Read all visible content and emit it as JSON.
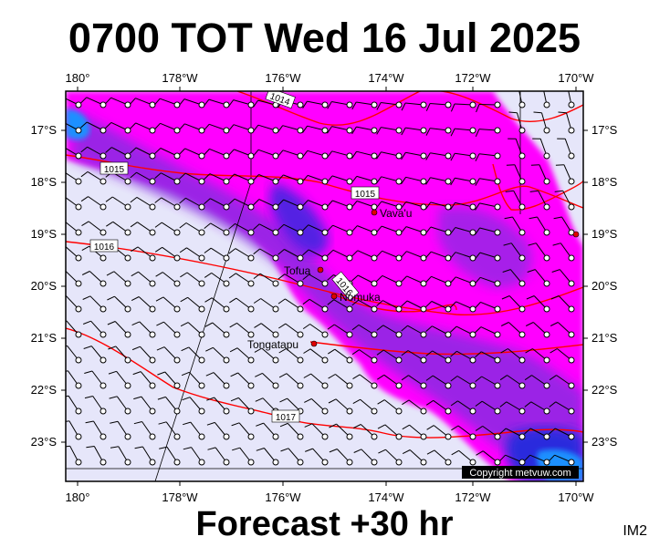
{
  "header": {
    "title": "0700 TOT Wed 16 Jul 2025"
  },
  "footer": {
    "forecast": "Forecast +30 hr",
    "code": "IM2"
  },
  "map": {
    "lon_ticks": [
      "180°",
      "178°W",
      "176°W",
      "174°W",
      "172°W",
      "170°W"
    ],
    "lat_ticks": [
      "17°S",
      "18°S",
      "19°S",
      "20°S",
      "21°S",
      "22°S",
      "23°S"
    ],
    "places": [
      {
        "name": "Vava'u",
        "lon": -173.9,
        "lat": -18.65
      },
      {
        "name": "Tofua",
        "lon": -175.05,
        "lat": -19.75
      },
      {
        "name": "Nomuka",
        "lon": -174.8,
        "lat": -20.25
      },
      {
        "name": "Tongatapu",
        "lon": -175.2,
        "lat": -21.15
      }
    ],
    "isobar_labels": [
      "1014",
      "1015",
      "1015",
      "1016",
      "1016",
      "1017"
    ],
    "copyright": "Copyright metvuw.com",
    "colors": {
      "background": "#e6e6fa",
      "rain_light": "#ff00ff",
      "rain_medium": "#8a2be2",
      "rain_heavy": "#2a2add",
      "rain_extreme": "#1e90ff",
      "isobar": "#ff0000"
    }
  }
}
